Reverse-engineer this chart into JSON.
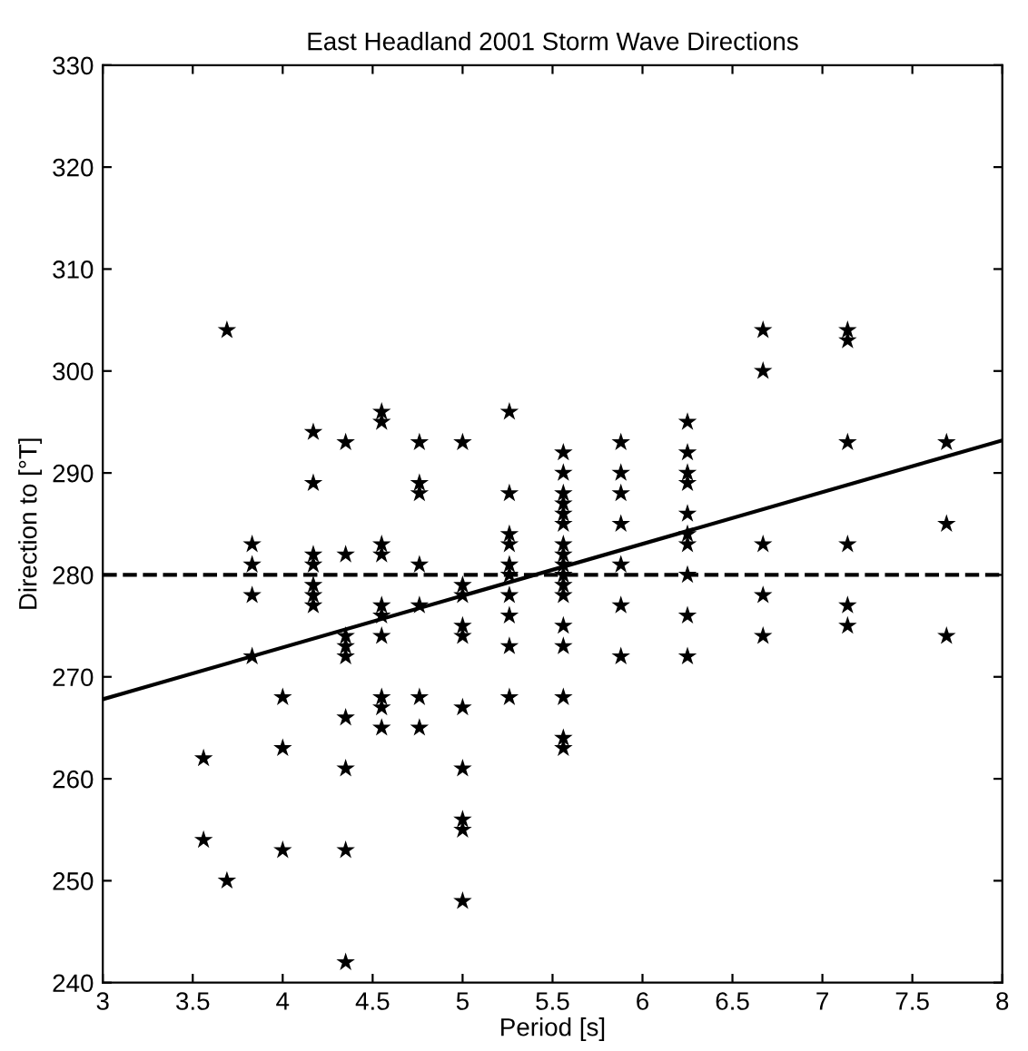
{
  "chart_data": {
    "type": "scatter",
    "title": "East Headland 2001 Storm Wave Directions",
    "xlabel": "Period [s]",
    "ylabel": "Direction to [°T]",
    "xlim": [
      3,
      8
    ],
    "xticks": [
      3,
      3.5,
      4,
      4.5,
      5,
      5.5,
      6,
      6.5,
      7,
      7.5,
      8
    ],
    "ylim": [
      240,
      330
    ],
    "yticks": [
      240,
      250,
      260,
      270,
      280,
      290,
      300,
      310,
      320,
      330
    ],
    "grid": false,
    "marker": "star",
    "series": [
      {
        "color": "#000000",
        "x": [
          3.56,
          3.56,
          3.69,
          3.69,
          3.83,
          3.83,
          3.83,
          3.83,
          4.0,
          4.0,
          4.0,
          4.17,
          4.17,
          4.17,
          4.17,
          4.17,
          4.17,
          4.17,
          4.35,
          4.35,
          4.35,
          4.35,
          4.35,
          4.35,
          4.35,
          4.35,
          4.35,
          4.55,
          4.55,
          4.55,
          4.55,
          4.55,
          4.55,
          4.55,
          4.55,
          4.55,
          4.55,
          4.76,
          4.76,
          4.76,
          4.76,
          4.76,
          4.76,
          4.76,
          5.0,
          5.0,
          5.0,
          5.0,
          5.0,
          5.0,
          5.0,
          5.0,
          5.0,
          5.0,
          5.26,
          5.26,
          5.26,
          5.26,
          5.26,
          5.26,
          5.26,
          5.26,
          5.26,
          5.26,
          5.56,
          5.56,
          5.56,
          5.56,
          5.56,
          5.56,
          5.56,
          5.56,
          5.56,
          5.56,
          5.56,
          5.56,
          5.56,
          5.56,
          5.56,
          5.56,
          5.56,
          5.88,
          5.88,
          5.88,
          5.88,
          5.88,
          5.88,
          5.88,
          6.25,
          6.25,
          6.25,
          6.25,
          6.25,
          6.25,
          6.25,
          6.25,
          6.25,
          6.25,
          6.67,
          6.67,
          6.67,
          6.67,
          6.67,
          7.14,
          7.14,
          7.14,
          7.14,
          7.14,
          7.14,
          7.69,
          7.69,
          7.69
        ],
        "values": [
          262,
          254,
          304,
          250,
          283,
          281,
          278,
          272,
          268,
          263,
          253,
          294,
          289,
          282,
          281,
          279,
          278,
          277,
          293,
          282,
          274,
          273,
          272,
          266,
          261,
          253,
          242,
          296,
          295,
          283,
          282,
          277,
          276,
          274,
          268,
          267,
          265,
          293,
          289,
          288,
          281,
          277,
          268,
          265,
          293,
          279,
          278,
          275,
          274,
          267,
          261,
          256,
          255,
          248,
          296,
          288,
          284,
          283,
          281,
          280,
          278,
          276,
          273,
          268,
          292,
          290,
          288,
          287,
          286,
          285,
          283,
          282,
          281,
          280,
          279,
          278,
          275,
          273,
          268,
          264,
          263,
          293,
          290,
          288,
          285,
          281,
          277,
          272,
          295,
          292,
          290,
          289,
          286,
          284,
          283,
          280,
          276,
          272,
          304,
          300,
          283,
          278,
          274,
          304,
          303,
          293,
          283,
          277,
          275,
          293,
          285,
          274
        ]
      },
      {
        "type": "line",
        "color": "#000000",
        "line_style": "solid",
        "marker": "none",
        "x": [
          3,
          8
        ],
        "values": [
          267.8,
          293.2
        ]
      }
    ],
    "ref_lines": [
      {
        "axis": "y",
        "value": 280,
        "color": "#000000",
        "line_style": "dashed"
      }
    ]
  }
}
